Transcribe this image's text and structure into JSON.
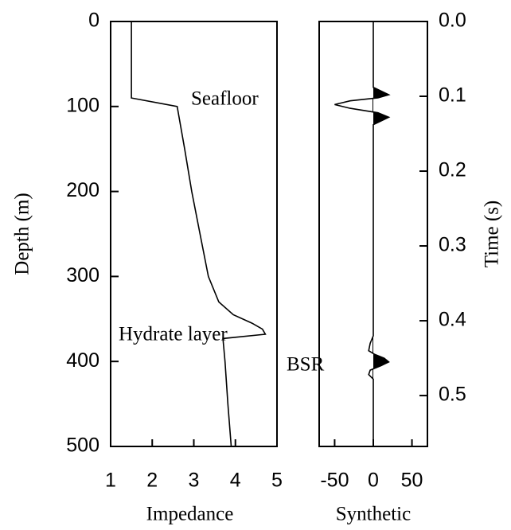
{
  "chart_data": [
    {
      "type": "line",
      "x_title": "Impedance",
      "y_title": "Depth (m)",
      "y_axis": "left",
      "xlim": [
        1,
        5
      ],
      "xticks": [
        1,
        2,
        3,
        4,
        5
      ],
      "ylim": [
        0,
        500
      ],
      "yticks": [
        0,
        100,
        200,
        300,
        400,
        500
      ],
      "y": [
        0,
        90,
        100,
        150,
        200,
        250,
        300,
        330,
        345,
        355,
        362,
        368,
        373,
        400,
        450,
        500
      ],
      "values": [
        1.5,
        1.5,
        2.6,
        2.78,
        2.95,
        3.15,
        3.35,
        3.6,
        3.95,
        4.4,
        4.65,
        4.72,
        3.7,
        3.75,
        3.82,
        3.9
      ],
      "color": "#000000",
      "annotations": [
        "Seafloor",
        "Hydrate layer"
      ]
    },
    {
      "type": "line",
      "x_title": "Synthetic",
      "y_title": "Time (s)",
      "y_axis": "right",
      "xlim": [
        -70,
        70
      ],
      "xticks": [
        -50,
        0,
        50
      ],
      "ylim": [
        0,
        0.568
      ],
      "yticks": [
        {
          "value": 0,
          "label": "0.0"
        },
        0.1,
        0.2,
        0.3,
        0.4,
        0.5
      ],
      "y": [
        0,
        0.088,
        0.094,
        0.098,
        0.102,
        0.106,
        0.111,
        0.116,
        0.122,
        0.128,
        0.133,
        0.138,
        0.42,
        0.43,
        0.44,
        0.445,
        0.45,
        0.455,
        0.46,
        0.466,
        0.472,
        0.478,
        0.568
      ],
      "values": [
        0,
        0,
        12,
        20,
        6,
        -30,
        -50,
        -30,
        6,
        20,
        10,
        0,
        0,
        -4,
        -6,
        2,
        14,
        20,
        10,
        -4,
        -6,
        0,
        0
      ],
      "color": "#000000",
      "annotations": [
        "BSR"
      ]
    }
  ]
}
